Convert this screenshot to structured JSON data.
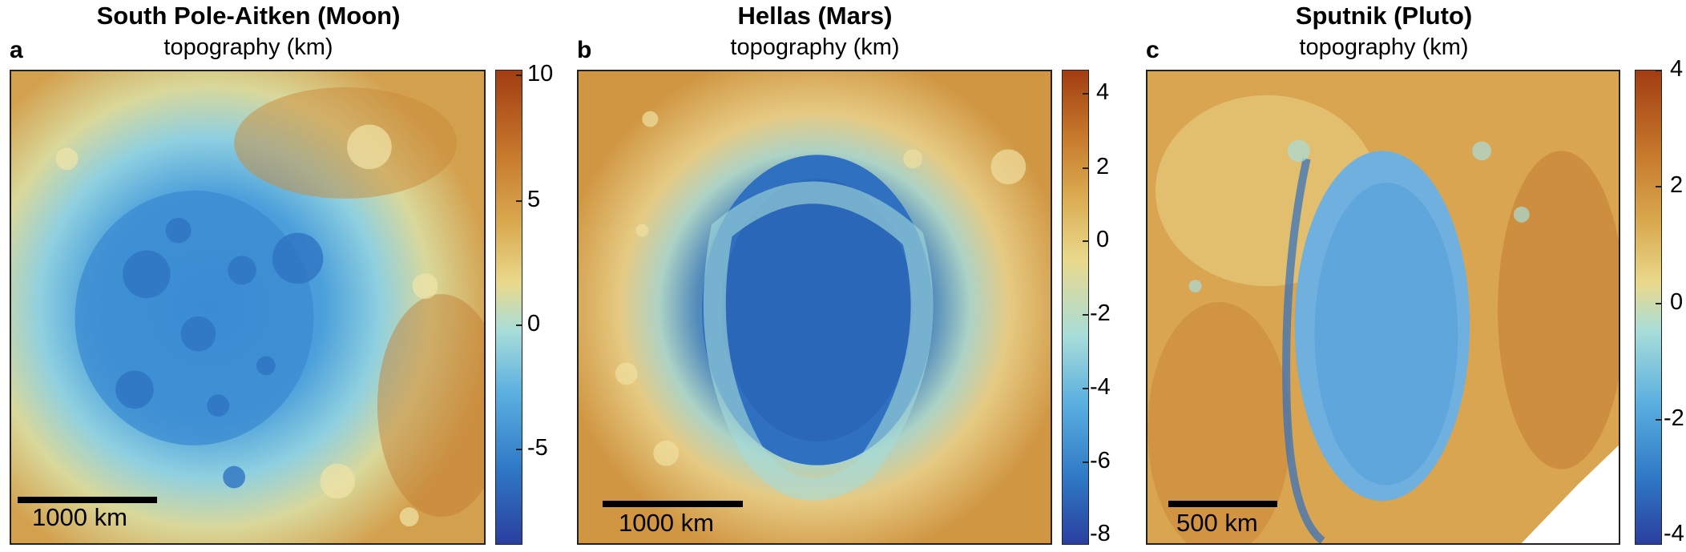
{
  "panels": [
    {
      "letter": "a",
      "title": "South Pole-Aitken (Moon)",
      "subtitle": "topography (km)",
      "scale_label": "1000 km",
      "colorbar_ticks": [
        "10",
        "5",
        "0",
        "-5"
      ]
    },
    {
      "letter": "b",
      "title": "Hellas (Mars)",
      "subtitle": "topography (km)",
      "scale_label": "1000 km",
      "colorbar_ticks": [
        "4",
        "2",
        "0",
        "-2",
        "-4",
        "-6",
        "-8"
      ]
    },
    {
      "letter": "c",
      "title": "Sputnik (Pluto)",
      "subtitle": "topography (km)",
      "scale_label": "500 km",
      "colorbar_ticks": [
        "4",
        "2",
        "0",
        "-2",
        "-4"
      ]
    }
  ],
  "colormap": [
    "#2a3f9f",
    "#2f79c6",
    "#5bb0e0",
    "#a8ddd9",
    "#e9d98c",
    "#d9a94e",
    "#c77a2c",
    "#a23d12"
  ]
}
